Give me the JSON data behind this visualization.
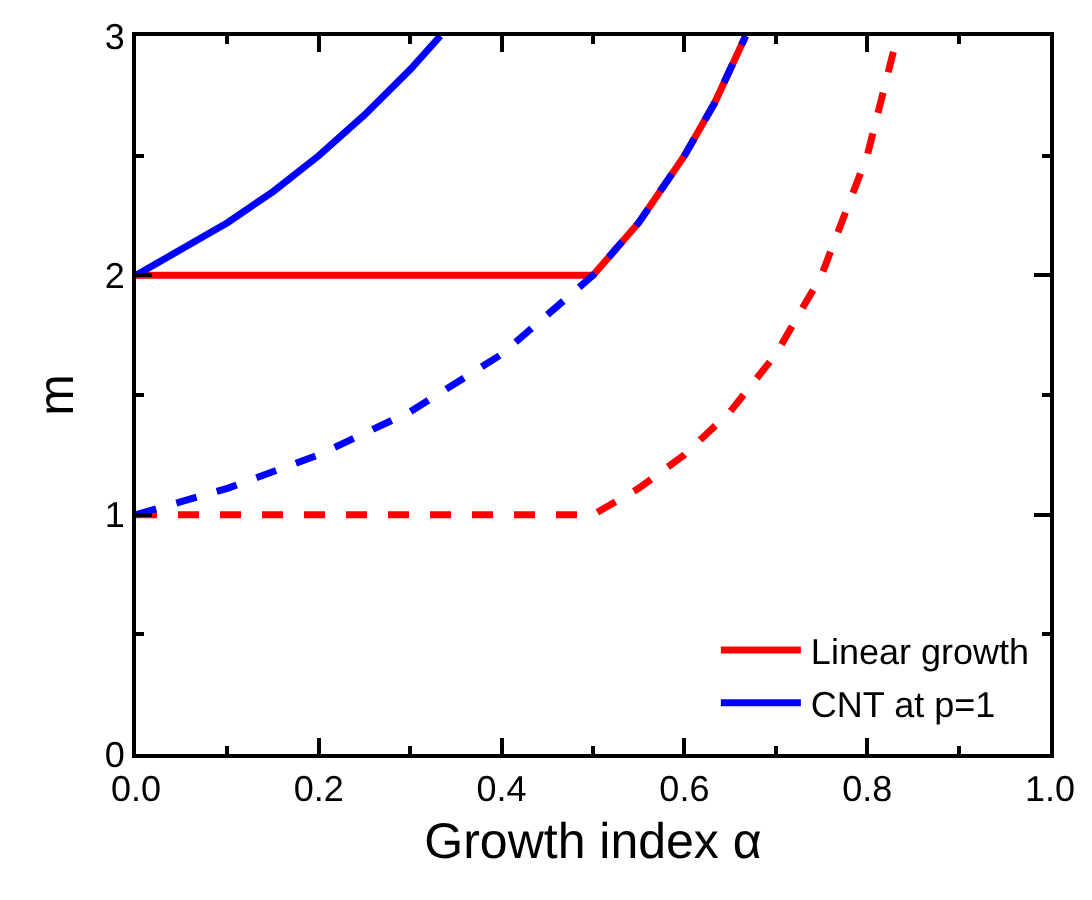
{
  "chart_data": {
    "type": "line",
    "xlabel": "Growth index α",
    "ylabel": "m",
    "xlim": [
      0,
      1
    ],
    "ylim": [
      0,
      3
    ],
    "xticks": [
      {
        "value": 0,
        "label": "0.0"
      },
      {
        "value": 0.1,
        "label": null
      },
      0.2,
      {
        "value": 0.3,
        "label": null
      },
      0.4,
      {
        "value": 0.5,
        "label": null
      },
      0.6,
      {
        "value": 0.7,
        "label": null
      },
      0.8,
      {
        "value": 0.9,
        "label": null
      },
      {
        "value": 1,
        "label": "1.0"
      }
    ],
    "yticks": [
      0,
      {
        "value": 0.5,
        "label": null
      },
      1,
      {
        "value": 1.5,
        "label": null
      },
      2,
      {
        "value": 2.5,
        "label": null
      },
      3
    ],
    "legend": "bottom right",
    "marker": "none",
    "series": [
      {
        "name": "Linear growth",
        "color": "#ff0000",
        "line_style": "solid",
        "x": [
          0,
          0.5,
          0.55,
          0.6,
          0.633,
          0.667
        ],
        "values": [
          2,
          2,
          2.22,
          2.5,
          2.72,
          3
        ]
      },
      {
        "name": "CNT at p=1",
        "color": "#0000ff",
        "line_style": "solid",
        "x": [
          0,
          0.05,
          0.1,
          0.15,
          0.2,
          0.25,
          0.3,
          0.333
        ],
        "values": [
          2,
          2.11,
          2.22,
          2.35,
          2.5,
          2.67,
          2.86,
          3
        ]
      },
      {
        "color": "#ff0000",
        "line_style": "dashed",
        "x": [
          0,
          0.5,
          0.55,
          0.6,
          0.65,
          0.7,
          0.75,
          0.8,
          0.833
        ],
        "values": [
          1,
          1,
          1.11,
          1.25,
          1.43,
          1.67,
          2,
          2.5,
          3
        ]
      },
      {
        "color": "#0000ff",
        "line_style": "dashed",
        "x": [
          0,
          0.1,
          0.2,
          0.3,
          0.4,
          0.5,
          0.55,
          0.6,
          0.633,
          0.667
        ],
        "values": [
          1,
          1.11,
          1.25,
          1.43,
          1.67,
          2,
          2.22,
          2.5,
          2.72,
          3
        ]
      }
    ]
  }
}
